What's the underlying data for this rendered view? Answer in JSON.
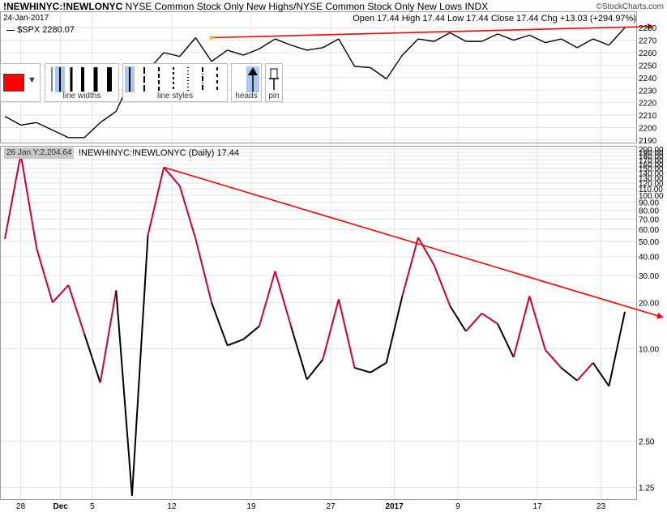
{
  "header": {
    "symbol": "!NEWHINYC:!NEWLONYC",
    "description": "NYSE Common Stock Only New Highs/NYSE Common Stock Only New Lows  INDX",
    "date": "24-Jan-2017",
    "quote": "Open 17.44  High 17.44  Low 17.44  Close 17.44  Chg +13.03 (+294.97%)",
    "brand": "©StockCharts.com",
    "up_arrow": "▲"
  },
  "toolbar": {
    "color": "#ff0000",
    "dropdown_caret": "▼",
    "line_widths_label": "line widths",
    "line_styles_label": "line styles",
    "heads_label": "heads",
    "pin_label": "pin"
  },
  "tooltip": "26 Jan Y:2,204.64",
  "chart_data": [
    {
      "type": "line",
      "series": [
        {
          "name": "$SPX 2280.07",
          "color": "#000000",
          "values": [
            2209,
            2202,
            2204,
            2198,
            2192,
            2192,
            2204,
            2213,
            2241,
            2246,
            2260,
            2257,
            2272,
            2253,
            2262,
            2258,
            2263,
            2271,
            2266,
            2262,
            2264,
            2271,
            2249,
            2248,
            2239,
            2258,
            2271,
            2269,
            2276,
            2269,
            2269,
            2275,
            2270,
            2274,
            2268,
            2271,
            2264,
            2271,
            2266,
            2280
          ]
        }
      ],
      "yticks": [
        2190,
        2200,
        2210,
        2220,
        2230,
        2240,
        2250,
        2260,
        2270,
        2280
      ],
      "ylim": [
        2188,
        2284
      ],
      "grid": true,
      "legend": "top-left",
      "trendline": {
        "color": "#ff0000",
        "from": [
          13,
          2272
        ],
        "to": [
          40,
          2281
        ],
        "arrow": true
      }
    },
    {
      "type": "line",
      "title": "!NEWHINYC:!NEWLONYC (Daily) 17.44",
      "scale": "log",
      "series": [
        {
          "name": "!NEWHINYC:!NEWLONYC",
          "values": [
            52,
            185,
            45,
            20,
            26,
            12.5,
            6,
            24,
            1.1,
            55,
            152,
            115,
            52,
            20,
            10.5,
            11.5,
            14,
            32,
            14,
            6.3,
            8.5,
            21,
            7.5,
            7,
            8.1,
            22,
            53,
            35,
            19,
            13,
            17,
            14.5,
            8.8,
            22,
            9.8,
            7.5,
            6.2,
            8.1,
            5.7,
            17.4
          ],
          "colors": [
            "#000000",
            "#cc0033",
            "#cc0033",
            "#cc0033",
            "#cc0033",
            "#cc0033",
            "#000000",
            "#cc0033",
            "#000000",
            "#000000",
            "#cc0033",
            "#cc0033",
            "#cc0033",
            "#cc0033",
            "#000000",
            "#000000",
            "#000000",
            "#cc0033",
            "#cc0033",
            "#000000",
            "#000000",
            "#cc0033",
            "#cc0033",
            "#000000",
            "#000000",
            "#000000",
            "#cc0033",
            "#cc0033",
            "#cc0033",
            "#000000",
            "#cc0033",
            "#cc0033",
            "#000000",
            "#cc0033",
            "#cc0033",
            "#cc0033",
            "#000000",
            "#cc0033",
            "#000000",
            "#000000"
          ]
        }
      ],
      "yticks": [
        "1.25",
        "2.50",
        "10.00",
        "20.00",
        "30.00",
        "40.00",
        "50.00",
        "60.00",
        "70.00",
        "80.00",
        "90.00",
        "100.00",
        "110.00",
        "120.00",
        "130.00",
        "140.00",
        "150.00",
        "160.00",
        "170.00",
        "180.00",
        "190.00",
        "200.00"
      ],
      "ylim": [
        1.1,
        200
      ],
      "grid": true,
      "trendline": {
        "color": "#ff0000",
        "from": [
          10,
          152
        ],
        "to": [
          40,
          16
        ],
        "arrow": true
      }
    }
  ],
  "x_axis": {
    "ticks": [
      {
        "label": "28",
        "index": 1,
        "bold": false
      },
      {
        "label": "Dec",
        "index": 3.5,
        "bold": true
      },
      {
        "label": "5",
        "index": 5.5,
        "bold": false
      },
      {
        "label": "12",
        "index": 10.5,
        "bold": false
      },
      {
        "label": "19",
        "index": 15.5,
        "bold": false
      },
      {
        "label": "27",
        "index": 20.5,
        "bold": false
      },
      {
        "label": "2017",
        "index": 24.5,
        "bold": true
      },
      {
        "label": "9",
        "index": 28.5,
        "bold": false
      },
      {
        "label": "17",
        "index": 33.5,
        "bold": false
      },
      {
        "label": "23",
        "index": 37.5,
        "bold": false
      }
    ]
  }
}
